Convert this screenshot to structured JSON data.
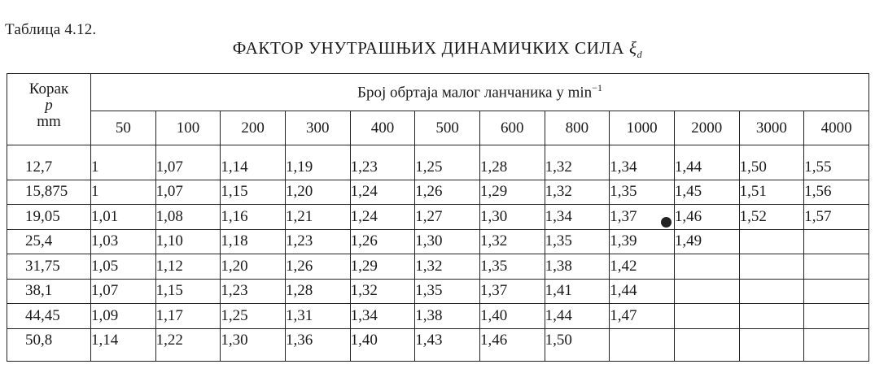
{
  "caption": "Таблица 4.12.",
  "title": {
    "text": "ФАКТОР УНУТРАШЊИХ ДИНАМИЧКИХ СИЛА",
    "symbol": "ξ",
    "symbol_sub": "d"
  },
  "table": {
    "step_header": {
      "line1": "Корак",
      "line2": "p",
      "line3": "mm"
    },
    "rpm_header": {
      "text": "Број обртаја малог ланчаника у min",
      "exponent": "−1"
    },
    "rpm_columns": [
      "50",
      "100",
      "200",
      "300",
      "400",
      "500",
      "600",
      "800",
      "1000",
      "2000",
      "3000",
      "4000"
    ],
    "rows": [
      {
        "p": "12,7",
        "values": [
          "1",
          "1,07",
          "1,14",
          "1,19",
          "1,23",
          "1,25",
          "1,28",
          "1,32",
          "1,34",
          "1,44",
          "1,50",
          "1,55"
        ]
      },
      {
        "p": "15,875",
        "values": [
          "1",
          "1,07",
          "1,15",
          "1,20",
          "1,24",
          "1,26",
          "1,29",
          "1,32",
          "1,35",
          "1,45",
          "1,51",
          "1,56"
        ]
      },
      {
        "p": "19,05",
        "values": [
          "1,01",
          "1,08",
          "1,16",
          "1,21",
          "1,24",
          "1,27",
          "1,30",
          "1,34",
          "1,37",
          "1,46",
          "1,52",
          "1,57"
        ]
      },
      {
        "p": "25,4",
        "values": [
          "1,03",
          "1,10",
          "1,18",
          "1,23",
          "1,26",
          "1,30",
          "1,32",
          "1,35",
          "1,39",
          "1,49",
          "",
          ""
        ]
      },
      {
        "p": "31,75",
        "values": [
          "1,05",
          "1,12",
          "1,20",
          "1,26",
          "1,29",
          "1,32",
          "1,35",
          "1,38",
          "1,42",
          "",
          "",
          ""
        ]
      },
      {
        "p": "38,1",
        "values": [
          "1,07",
          "1,15",
          "1,23",
          "1,28",
          "1,32",
          "1,35",
          "1,37",
          "1,41",
          "1,44",
          "",
          "",
          ""
        ]
      },
      {
        "p": "44,45",
        "values": [
          "1,09",
          "1,17",
          "1,25",
          "1,31",
          "1,34",
          "1,38",
          "1,40",
          "1,44",
          "1,47",
          "",
          "",
          ""
        ]
      },
      {
        "p": "50,8",
        "values": [
          "1,14",
          "1,22",
          "1,30",
          "1,36",
          "1,40",
          "1,43",
          "1,46",
          "1,50",
          "",
          "",
          "",
          ""
        ]
      }
    ]
  }
}
